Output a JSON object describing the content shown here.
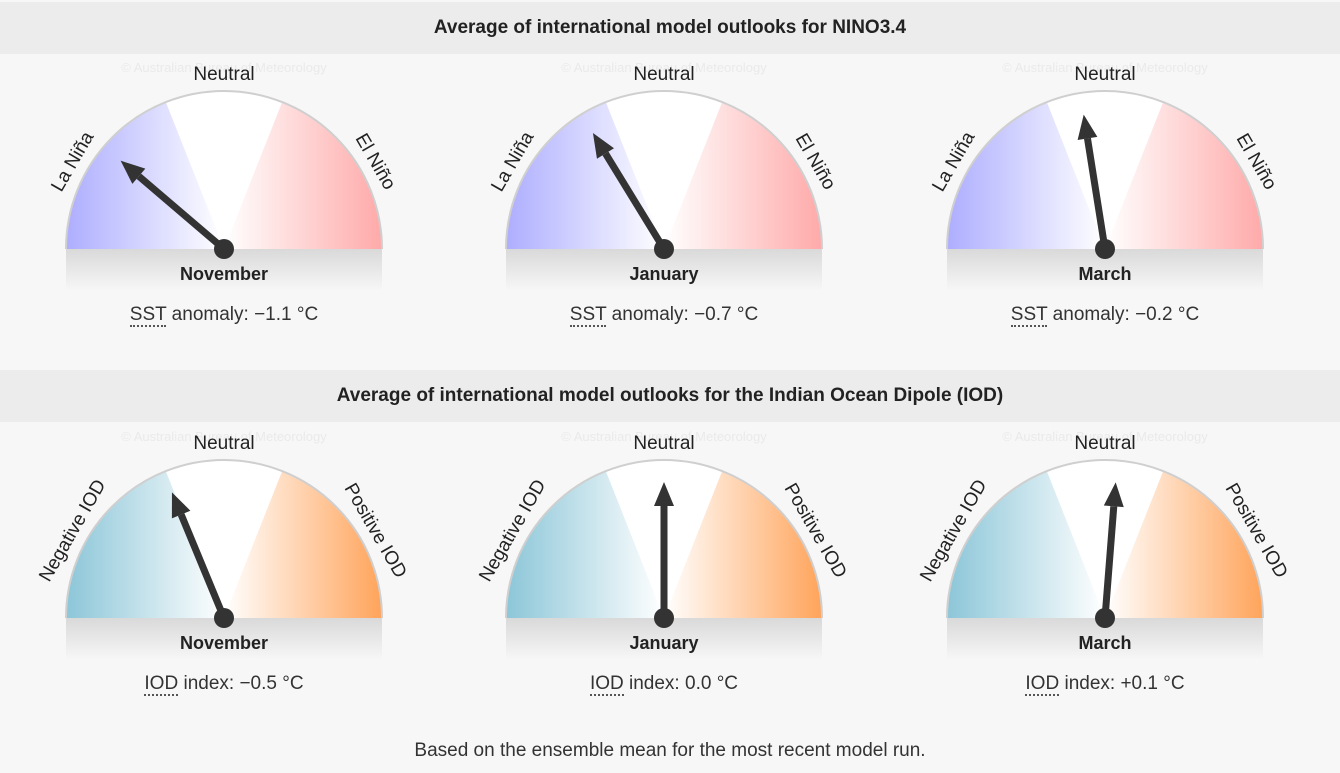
{
  "sections": [
    {
      "title": "Average of international model outlooks for NINO3.4",
      "left_label": "La Niña",
      "mid_label": "Neutral",
      "right_label": "El Niño",
      "left_color": "#a9a9ff",
      "right_color": "#ffa5a5",
      "caption_abbr": "SST",
      "caption_text": " anomaly: ",
      "unit": "°C",
      "gauges": [
        {
          "month": "November",
          "value_text": "−1.1"
        },
        {
          "month": "January",
          "value_text": "−0.7"
        },
        {
          "month": "March",
          "value_text": "−0.2"
        }
      ]
    },
    {
      "title": "Average of international model outlooks for the Indian Ocean Dipole (IOD)",
      "left_label": "Negative IOD",
      "mid_label": "Neutral",
      "right_label": "Positive IOD",
      "left_color": "#86c3d6",
      "right_color": "#ff9f52",
      "caption_abbr": "IOD",
      "caption_text": " index: ",
      "unit": "°C",
      "gauges": [
        {
          "month": "November",
          "value_text": "−0.5"
        },
        {
          "month": "January",
          "value_text": "0.0"
        },
        {
          "month": "March",
          "value_text": "+0.1"
        }
      ]
    }
  ],
  "watermark": "© Australian Bureau of Meteorology",
  "footer": "Based on the ensemble mean for the most recent model run.",
  "chart_data": [
    {
      "type": "gauge",
      "title": "Average of international model outlooks for NINO3.4",
      "categories": [
        "November",
        "January",
        "March"
      ],
      "values": [
        -1.1,
        -0.7,
        -0.2
      ],
      "unit": "°C",
      "labels": [
        "La Niña",
        "Neutral",
        "El Niño"
      ]
    },
    {
      "type": "gauge",
      "title": "Average of international model outlooks for the Indian Ocean Dipole (IOD)",
      "categories": [
        "November",
        "January",
        "March"
      ],
      "values": [
        -0.5,
        0.0,
        0.1
      ],
      "unit": "°C",
      "labels": [
        "Negative IOD",
        "Neutral",
        "Positive IOD"
      ]
    }
  ]
}
